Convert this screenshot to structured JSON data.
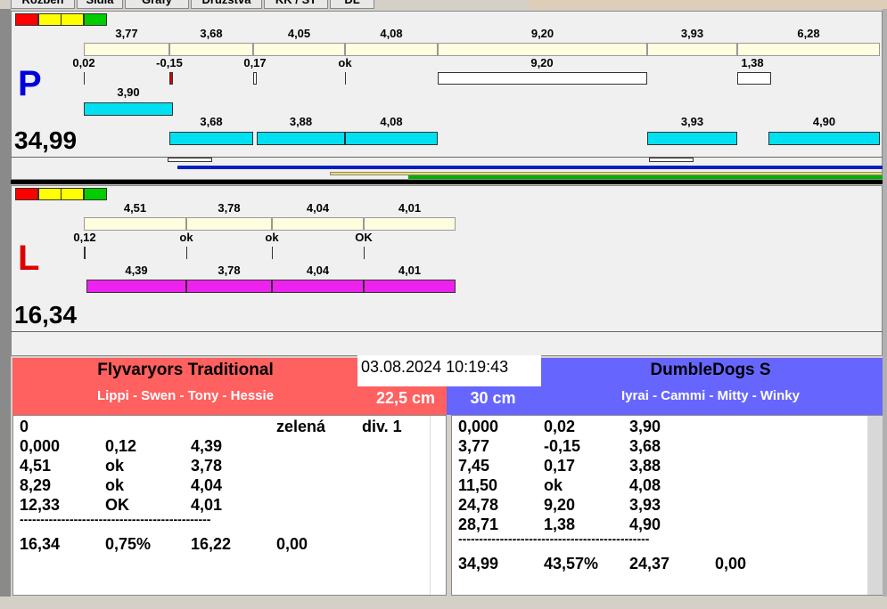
{
  "tabs": [
    "Rozběh",
    "Sidla",
    "Grafy",
    "Družstva",
    "KK / ST",
    "DL"
  ],
  "lanes": [
    {
      "letter": "P",
      "total": "34,99",
      "top_labels": [
        "3,77",
        "3,68",
        "4,05",
        "4,08",
        "9,20",
        "3,93",
        "6,28"
      ],
      "start_labels": [
        "0,02",
        "-0,15",
        "0,17",
        "ok",
        "9,20",
        "1,38"
      ],
      "row3_labels": [
        "3,90"
      ],
      "row4_labels": [
        "3,68",
        "3,88",
        "4,08",
        "3,93",
        "4,90"
      ]
    },
    {
      "letter": "L",
      "total": "16,34",
      "top_labels": [
        "4,51",
        "3,78",
        "4,04",
        "4,01"
      ],
      "start_labels": [
        "0,12",
        "ok",
        "ok",
        "OK"
      ],
      "row4_labels": [
        "4,39",
        "3,78",
        "4,04",
        "4,01"
      ]
    }
  ],
  "datetime": "03.08.2024 10:19:43",
  "teams": [
    {
      "name": "Flyvaryors Traditional",
      "dogs": "Lippi - Swen - Tony - Hessie",
      "distance": "22,5 cm",
      "head": [
        "0",
        "zelená",
        "div. 1"
      ],
      "rows": [
        [
          "0,000",
          "0,12",
          "4,39"
        ],
        [
          "4,51",
          "ok",
          "3,78"
        ],
        [
          "8,29",
          "ok",
          "4,04"
        ],
        [
          "12,33",
          "OK",
          "4,01"
        ]
      ],
      "separator": "----------------------------------------------",
      "summary": [
        "16,34",
        "0,75%",
        "16,22",
        "0,00"
      ]
    },
    {
      "name": "DumbleDogs S",
      "dogs": "Iyrai - Cammi - Mitty - Winky",
      "distance": "30 cm",
      "rows": [
        [
          "0,000",
          "0,02",
          "3,90"
        ],
        [
          "3,77",
          "-0,15",
          "3,68"
        ],
        [
          "7,45",
          "0,17",
          "3,88"
        ],
        [
          "11,50",
          "ok",
          "4,08"
        ],
        [
          "24,78",
          "9,20",
          "3,93"
        ],
        [
          "28,71",
          "1,38",
          "4,90"
        ]
      ],
      "separator": "----------------------------------------------",
      "summary": [
        "34,99",
        "43,57%",
        "24,37",
        "0,00"
      ]
    }
  ]
}
